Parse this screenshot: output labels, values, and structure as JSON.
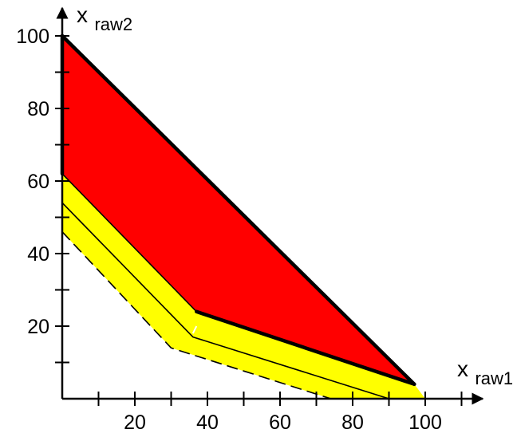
{
  "chart_data": {
    "type": "area",
    "xlabel": {
      "main": "x",
      "sub": "raw1"
    },
    "ylabel": {
      "main": "x",
      "sub": "raw2"
    },
    "xlim": [
      0,
      100
    ],
    "ylim": [
      0,
      100
    ],
    "x_ticks_labeled": [
      20,
      40,
      60,
      80,
      100
    ],
    "x_ticks_minor": [
      10,
      30,
      50,
      70,
      90,
      110
    ],
    "y_ticks_labeled": [
      20,
      40,
      60,
      80,
      100
    ],
    "y_ticks_minor": [
      10,
      30,
      50,
      70,
      90
    ],
    "grid": false,
    "colors": {
      "region_upper": "#ff0000",
      "region_lower": "#ffff00",
      "line": "#000000",
      "marker": "#ffffff"
    },
    "regions": [
      {
        "fill": "#ffff00",
        "points": [
          [
            0,
            62
          ],
          [
            37,
            24
          ],
          [
            97,
            4
          ],
          [
            100,
            0
          ],
          [
            74,
            0
          ],
          [
            30,
            14
          ],
          [
            0,
            46
          ]
        ]
      },
      {
        "fill": "#ff0000",
        "points": [
          [
            0,
            100
          ],
          [
            97,
            4
          ],
          [
            37,
            24
          ],
          [
            0,
            62
          ]
        ]
      }
    ],
    "lines": [
      {
        "style": "thick",
        "points": [
          [
            0,
            100
          ],
          [
            97,
            4
          ]
        ]
      },
      {
        "style": "thick",
        "points": [
          [
            0,
            100
          ],
          [
            0,
            62
          ]
        ]
      },
      {
        "style": "thick",
        "points": [
          [
            37,
            24
          ],
          [
            97,
            4
          ]
        ]
      },
      {
        "style": "thin",
        "points": [
          [
            0,
            62
          ],
          [
            37,
            24
          ]
        ]
      },
      {
        "style": "thin",
        "points": [
          [
            0,
            54
          ],
          [
            36,
            17
          ],
          [
            90,
            0
          ]
        ]
      },
      {
        "style": "dashed",
        "points": [
          [
            0,
            46
          ],
          [
            30,
            14
          ],
          [
            74,
            0
          ]
        ]
      }
    ],
    "markers": [
      {
        "style": "white-short-line",
        "points": [
          [
            37,
            20
          ],
          [
            36,
            18
          ]
        ]
      }
    ]
  }
}
